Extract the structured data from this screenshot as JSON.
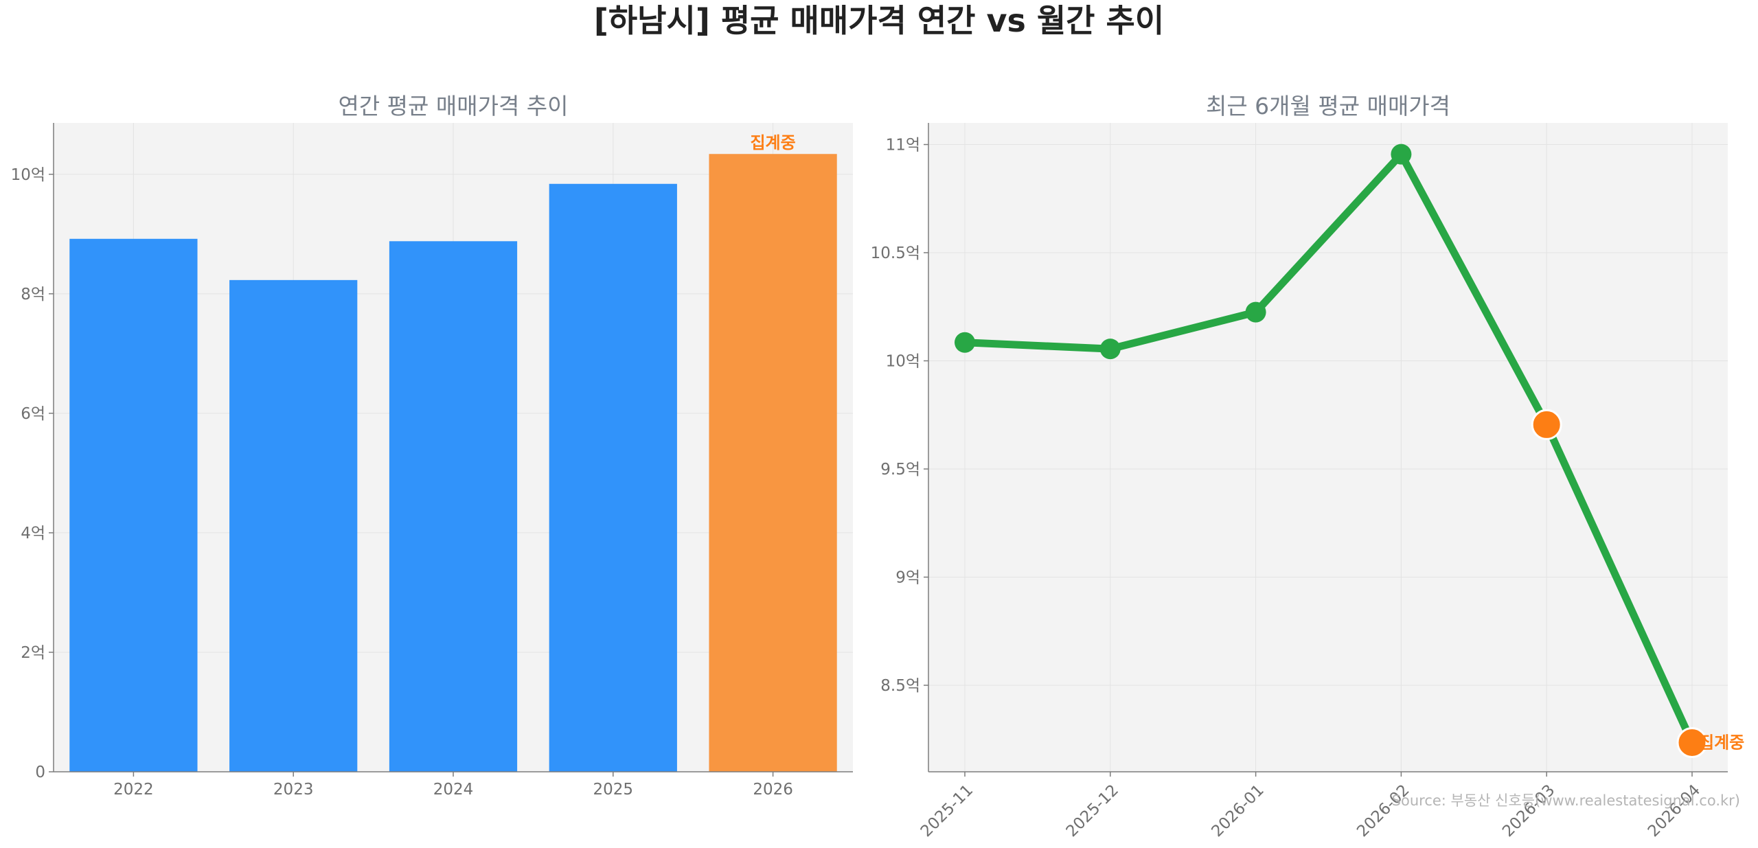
{
  "suptitle": "[하남시] 평균 매매가격 연간 vs 월간 추이",
  "source": "Source: 부동산 신호등(www.realestatesignal.co.kr)",
  "colors": {
    "bar": "#3193fa",
    "bar_partial": "#f89641",
    "line": "#28a745",
    "marker_partial": "#fd7e14",
    "annotation": "#fd7e14",
    "panel_bg": "#f3f3f3",
    "grid": "#e3e3e3",
    "axis": "#7c7c7c",
    "title": "#777f8a",
    "tick": "#6f6f6f"
  },
  "chart_data": [
    {
      "type": "bar",
      "title": "연간 평균 매매가격 추이",
      "xlabel": "",
      "ylabel": "",
      "categories": [
        "2022",
        "2023",
        "2024",
        "2025",
        "2026"
      ],
      "values": [
        8.92,
        8.23,
        8.88,
        9.84,
        10.34
      ],
      "partial": [
        false,
        false,
        false,
        false,
        true
      ],
      "annotation": "집계중",
      "ylim": [
        0,
        10.86
      ],
      "yticks": [
        0,
        2,
        4,
        6,
        8,
        10
      ],
      "ytick_labels": [
        "0",
        "2억",
        "4억",
        "6억",
        "8억",
        "10억"
      ],
      "grid": true
    },
    {
      "type": "line",
      "title": "최근 6개월 평균 매매가격",
      "xlabel": "",
      "ylabel": "",
      "x": [
        "2025-11",
        "2025-12",
        "2026-01",
        "2026-02",
        "2026-03",
        "2026-04"
      ],
      "values": [
        10.085,
        10.055,
        10.225,
        10.955,
        9.705,
        8.235
      ],
      "partial": [
        false,
        false,
        false,
        false,
        true,
        true
      ],
      "annotation": "집계중",
      "ylim": [
        8.1,
        11.1
      ],
      "yticks": [
        8.5,
        9.0,
        9.5,
        10.0,
        10.5,
        11.0
      ],
      "ytick_labels": [
        "8.5억",
        "9억",
        "9.5억",
        "10억",
        "10.5억",
        "11억"
      ],
      "grid": true
    }
  ]
}
